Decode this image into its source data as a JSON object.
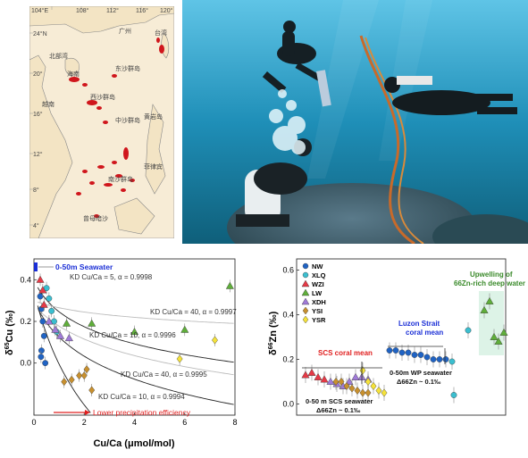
{
  "map": {
    "lon_labels": [
      "104°E",
      "108°",
      "112°",
      "116°",
      "120°"
    ],
    "lat_labels": [
      "24°N",
      "20°",
      "16°",
      "12°",
      "8°",
      "4°"
    ],
    "place_labels": [
      "广州",
      "台湾",
      "北部湾",
      "海南",
      "东沙群岛",
      "西沙群岛",
      "中沙群岛",
      "黄岩岛",
      "南沙群岛",
      "菲律宾",
      "曾母暗沙",
      "越南"
    ]
  },
  "photo": {},
  "left_panel": {
    "ylabel": "δ65Cu (‰)",
    "ylabel_sup": "65",
    "xlabel": "Cu/Ca (μmol/mol)",
    "surface_label": "0-50m Seawater",
    "arrow_label": "Lower precipitation efficiency",
    "curves": [
      {
        "text": "KD Cu/Ca = 5, α = 0.9998"
      },
      {
        "text": "KD Cu/Ca = 40, α = 0.9997"
      },
      {
        "text": "KD Cu/Ca = 10, α = 0.9996"
      },
      {
        "text": "KD Cu/Ca = 40, α = 0.9995"
      },
      {
        "text": "KD Cu/Ca = 10, α = 0.9994"
      }
    ]
  },
  "right_panel": {
    "ylabel": "δ66Zn (‰)",
    "ylabel_sup": "66",
    "legend": [
      "NW",
      "XLQ",
      "WZI",
      "LW",
      "XDH",
      "YSI",
      "YSR"
    ],
    "scs_mean_label": "SCS coral mean",
    "scs_seawater_label_1": "0-50 m SCS seawater",
    "scs_seawater_label_2": "Δ66Zn ~ 0.1‰",
    "luzon_label_1": "Luzon Strait",
    "luzon_label_2": "coral mean",
    "wp_seawater_label_1": "0-50m WP seawater",
    "wp_seawater_label_2": "Δ66Zn ~ 0.1‰",
    "upwelling_label_1": "Upwelling of",
    "upwelling_label_2": "66Zn-rich deep water"
  },
  "chart_data": [
    {
      "type": "scatter",
      "title": "",
      "xlabel": "Cu/Ca (μmol/mol)",
      "ylabel": "δ65Cu (‰)",
      "xlim": [
        0,
        8
      ],
      "ylim": [
        -0.25,
        0.5
      ],
      "xticks": [
        0,
        2,
        4,
        6,
        8
      ],
      "yticks": [
        0.0,
        0.2,
        0.4
      ],
      "legend": "none",
      "series": [
        {
          "name": "NW",
          "color": "#1f63c4",
          "x": [
            0.25,
            0.3,
            0.35,
            0.4,
            0.3,
            0.28,
            0.45
          ],
          "y": [
            0.32,
            0.26,
            0.2,
            0.13,
            0.06,
            0.03,
            0.0
          ]
        },
        {
          "name": "XLQ",
          "color": "#3bbfd0",
          "x": [
            0.5,
            0.6,
            0.7,
            0.8,
            0.9
          ],
          "y": [
            0.36,
            0.31,
            0.25,
            0.2,
            0.15
          ]
        },
        {
          "name": "WZI",
          "color": "#e63946",
          "x": [
            0.25,
            0.35,
            0.4
          ],
          "y": [
            0.4,
            0.35,
            0.28
          ]
        },
        {
          "name": "LW",
          "color": "#5fae3a",
          "x": [
            1.3,
            2.3,
            4.0,
            6.0,
            7.8
          ],
          "y": [
            0.19,
            0.19,
            0.15,
            0.16,
            0.37
          ]
        },
        {
          "name": "XDH",
          "color": "#a07ad8",
          "x": [
            0.6,
            0.85,
            1.05,
            1.4
          ],
          "y": [
            0.2,
            0.16,
            0.13,
            0.12
          ]
        },
        {
          "name": "YSI",
          "color": "#c8902e",
          "x": [
            1.2,
            1.5,
            1.8,
            2.0,
            2.3,
            2.1
          ],
          "y": [
            -0.09,
            -0.08,
            -0.06,
            -0.06,
            -0.13,
            -0.03
          ]
        },
        {
          "name": "YSR",
          "color": "#f5e23a",
          "x": [
            5.8,
            7.2
          ],
          "y": [
            0.02,
            0.11
          ]
        }
      ]
    },
    {
      "type": "scatter",
      "title": "",
      "xlabel": "",
      "ylabel": "δ66Zn (‰)",
      "ylim": [
        -0.05,
        0.65
      ],
      "yticks": [
        0.0,
        0.2,
        0.4,
        0.6
      ],
      "legend": "top-left",
      "series": [
        {
          "name": "WZI",
          "color": "#e63946",
          "y": [
            0.13,
            0.14,
            0.12,
            0.11
          ]
        },
        {
          "name": "XDH",
          "color": "#a07ad8",
          "y": [
            0.1,
            0.09,
            0.08,
            0.1,
            0.12,
            0.12,
            0.11
          ]
        },
        {
          "name": "YSI",
          "color": "#c8902e",
          "y": [
            0.1,
            0.1,
            0.08,
            0.07,
            0.06,
            0.05,
            0.05
          ]
        },
        {
          "name": "YSR",
          "color": "#f5e23a",
          "y": [
            0.15,
            0.1,
            0.08,
            0.06,
            0.05
          ]
        },
        {
          "name": "NW",
          "color": "#1f63c4",
          "y": [
            0.24,
            0.24,
            0.23,
            0.23,
            0.22,
            0.22,
            0.21,
            0.2,
            0.2,
            0.2
          ]
        },
        {
          "name": "XLQ",
          "color": "#3bbfd0",
          "y": [
            0.19,
            0.33,
            0.04
          ]
        },
        {
          "name": "LW",
          "color": "#5fae3a",
          "y": [
            0.42,
            0.46,
            0.3,
            0.28,
            0.32
          ]
        }
      ]
    }
  ]
}
